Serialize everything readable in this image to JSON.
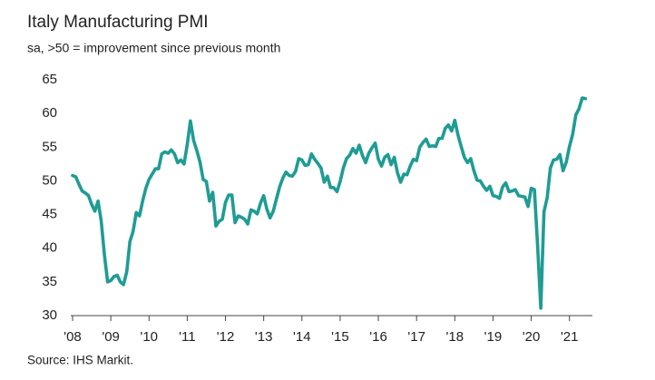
{
  "chart_data": {
    "type": "line",
    "title": "Italy Manufacturing PMI",
    "subtitle": "sa, >50 = improvement since previous month",
    "source": "Source: IHS Markit.",
    "color": "#1f9c94",
    "xlim": [
      2008,
      2021.6
    ],
    "ylim": [
      30,
      65
    ],
    "yticks": [
      30,
      35,
      40,
      45,
      50,
      55,
      60,
      65
    ],
    "xticks": [
      {
        "value": 2008,
        "label": "'08"
      },
      {
        "value": 2009,
        "label": "'09"
      },
      {
        "value": 2010,
        "label": "'10"
      },
      {
        "value": 2011,
        "label": "'11"
      },
      {
        "value": 2012,
        "label": "'12"
      },
      {
        "value": 2013,
        "label": "'13"
      },
      {
        "value": 2014,
        "label": "'14"
      },
      {
        "value": 2015,
        "label": "'15"
      },
      {
        "value": 2016,
        "label": "'16"
      },
      {
        "value": 2017,
        "label": "'17"
      },
      {
        "value": 2018,
        "label": "'18"
      },
      {
        "value": 2019,
        "label": "'19"
      },
      {
        "value": 2020,
        "label": "'20"
      },
      {
        "value": 2021,
        "label": "'21"
      }
    ],
    "x": [
      2008,
      2008.083,
      2008.167,
      2008.25,
      2008.333,
      2008.417,
      2008.5,
      2008.583,
      2008.667,
      2008.75,
      2008.833,
      2008.917,
      2009,
      2009.083,
      2009.167,
      2009.25,
      2009.333,
      2009.417,
      2009.5,
      2009.583,
      2009.667,
      2009.75,
      2009.833,
      2009.917,
      2010,
      2010.083,
      2010.167,
      2010.25,
      2010.333,
      2010.417,
      2010.5,
      2010.583,
      2010.667,
      2010.75,
      2010.833,
      2010.917,
      2011,
      2011.083,
      2011.167,
      2011.25,
      2011.333,
      2011.417,
      2011.5,
      2011.583,
      2011.667,
      2011.75,
      2011.833,
      2011.917,
      2012,
      2012.083,
      2012.167,
      2012.25,
      2012.333,
      2012.417,
      2012.5,
      2012.583,
      2012.667,
      2012.75,
      2012.833,
      2012.917,
      2013,
      2013.083,
      2013.167,
      2013.25,
      2013.333,
      2013.417,
      2013.5,
      2013.583,
      2013.667,
      2013.75,
      2013.833,
      2013.917,
      2014,
      2014.083,
      2014.167,
      2014.25,
      2014.333,
      2014.417,
      2014.5,
      2014.583,
      2014.667,
      2014.75,
      2014.833,
      2014.917,
      2015,
      2015.083,
      2015.167,
      2015.25,
      2015.333,
      2015.417,
      2015.5,
      2015.583,
      2015.667,
      2015.75,
      2015.833,
      2015.917,
      2016,
      2016.083,
      2016.167,
      2016.25,
      2016.333,
      2016.417,
      2016.5,
      2016.583,
      2016.667,
      2016.75,
      2016.833,
      2016.917,
      2017,
      2017.083,
      2017.167,
      2017.25,
      2017.333,
      2017.417,
      2017.5,
      2017.583,
      2017.667,
      2017.75,
      2017.833,
      2017.917,
      2018,
      2018.083,
      2018.167,
      2018.25,
      2018.333,
      2018.417,
      2018.5,
      2018.583,
      2018.667,
      2018.75,
      2018.833,
      2018.917,
      2019,
      2019.083,
      2019.167,
      2019.25,
      2019.333,
      2019.417,
      2019.5,
      2019.583,
      2019.667,
      2019.75,
      2019.833,
      2019.917,
      2020,
      2020.083,
      2020.167,
      2020.25,
      2020.333,
      2020.417,
      2020.5,
      2020.583,
      2020.667,
      2020.75,
      2020.833,
      2020.917,
      2021,
      2021.083,
      2021.167,
      2021.25,
      2021.333,
      2021.417
    ],
    "values": [
      50.8,
      50.6,
      49.5,
      48.5,
      48.2,
      47.8,
      46.5,
      45.5,
      47,
      44,
      39,
      35,
      35.2,
      35.8,
      36,
      35,
      34.6,
      36.5,
      41,
      42.5,
      45.3,
      44.8,
      47,
      48.9,
      50.2,
      51,
      51.8,
      51.8,
      54,
      54.3,
      54.1,
      54.6,
      54,
      52.7,
      53.1,
      52.5,
      55.4,
      58.9,
      56,
      54.5,
      52.8,
      50.2,
      49.9,
      47,
      48.3,
      43.3,
      44,
      44.3,
      46.8,
      47.9,
      47.9,
      43.8,
      44.8,
      44.6,
      44.3,
      43.6,
      45.7,
      45.5,
      45.1,
      46.7,
      47.8,
      45.8,
      44.5,
      45.5,
      47.3,
      49.1,
      50.4,
      51.3,
      50.8,
      50.7,
      51.4,
      53.3,
      53.1,
      52.3,
      52.4,
      54,
      53.2,
      52.6,
      51.9,
      49.8,
      50.7,
      49,
      49,
      48.4,
      49.9,
      51.9,
      53.3,
      53.8,
      54.8,
      54.1,
      55.3,
      53.8,
      52.7,
      54.1,
      54.9,
      55.6,
      53.2,
      52.2,
      53.5,
      53.9,
      52.4,
      53.5,
      51.2,
      49.8,
      51,
      50.9,
      52.2,
      53.2,
      53,
      55,
      55.7,
      56.2,
      55.1,
      55.2,
      55.1,
      56.3,
      56.3,
      57.8,
      58.3,
      57.4,
      59,
      56.8,
      55.1,
      53.5,
      52.7,
      53.3,
      51.5,
      50.1,
      50,
      49.2,
      48.6,
      49.2,
      47.8,
      47.7,
      47.4,
      49.1,
      49.7,
      48.4,
      48.5,
      48.7,
      47.8,
      47.7,
      47.6,
      46.2,
      48.9,
      48.7,
      40.3,
      31.1,
      45.4,
      47.5,
      51.9,
      53.1,
      53.2,
      53.9,
      51.5,
      52.8,
      55.1,
      56.9,
      59.8,
      60.7,
      62.3,
      62.2
    ]
  }
}
